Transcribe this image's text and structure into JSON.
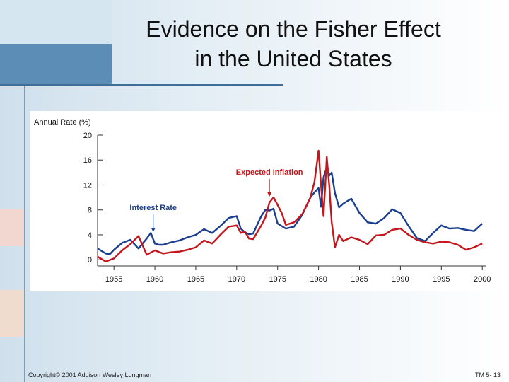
{
  "slide": {
    "title_line1": "Evidence on the Fisher Effect",
    "title_line2": "in the United States",
    "copyright": "Copyright© 2001 Addison Wesley Longman",
    "page_label": "TM 5- 13"
  },
  "chart_data": {
    "type": "line",
    "title": "",
    "xlabel": "",
    "ylabel": "Annual Rate (%)",
    "xlim": [
      1953,
      2000.5
    ],
    "ylim": [
      -1,
      20
    ],
    "xticks": [
      1955,
      1960,
      1965,
      1970,
      1975,
      1980,
      1985,
      1990,
      1995,
      2000
    ],
    "yticks": [
      0,
      4,
      8,
      12,
      16,
      20
    ],
    "grid": false,
    "colors": {
      "interest": "#1b3f8f",
      "inflation": "#c4161c"
    },
    "annotations": [
      {
        "text": "Interest Rate",
        "series": "Interest Rate",
        "x": 1959.8,
        "y": 4.1
      },
      {
        "text": "Expected Inflation",
        "series": "Expected Inflation",
        "x": 1974.0,
        "y": 9.8
      }
    ],
    "series": [
      {
        "name": "Interest Rate",
        "color": "#1b3f8f",
        "x": [
          1953,
          1954,
          1954.5,
          1955,
          1956,
          1957,
          1958,
          1958.5,
          1959,
          1959.5,
          1960,
          1960.5,
          1961,
          1962,
          1963,
          1964,
          1965,
          1966,
          1967,
          1968,
          1969,
          1970,
          1970.5,
          1971,
          1971.5,
          1972,
          1973,
          1973.5,
          1974,
          1974.5,
          1975,
          1975.5,
          1976,
          1977,
          1978,
          1979,
          1979.5,
          1980,
          1980.3,
          1980.6,
          1981,
          1981.3,
          1981.6,
          1982,
          1982.5,
          1983,
          1984,
          1985,
          1986,
          1987,
          1988,
          1989,
          1990,
          1991,
          1992,
          1993,
          1994,
          1995,
          1996,
          1997,
          1998,
          1999,
          2000
        ],
        "values": [
          1.8,
          1.0,
          0.9,
          1.6,
          2.7,
          3.2,
          1.8,
          2.6,
          3.4,
          4.3,
          2.6,
          2.4,
          2.4,
          2.8,
          3.1,
          3.6,
          4.0,
          4.9,
          4.3,
          5.4,
          6.7,
          7.0,
          5.0,
          4.4,
          4.1,
          4.2,
          7.0,
          8.0,
          7.9,
          8.2,
          5.8,
          5.4,
          5.0,
          5.3,
          7.2,
          10.0,
          10.8,
          11.5,
          8.5,
          13.2,
          14.8,
          13.5,
          14.0,
          10.7,
          8.4,
          9.0,
          9.8,
          7.5,
          6.0,
          5.8,
          6.7,
          8.1,
          7.5,
          5.4,
          3.5,
          3.0,
          4.3,
          5.5,
          5.0,
          5.1,
          4.8,
          4.6,
          5.8
        ]
      },
      {
        "name": "Expected Inflation",
        "color": "#c4161c",
        "x": [
          1953,
          1954,
          1955,
          1956,
          1957,
          1958,
          1959,
          1960,
          1961,
          1962,
          1963,
          1964,
          1965,
          1966,
          1967,
          1968,
          1969,
          1970,
          1970.5,
          1971,
          1971.5,
          1972,
          1973,
          1973.5,
          1974,
          1974.5,
          1975,
          1975.5,
          1976,
          1977,
          1978,
          1979,
          1979.5,
          1980,
          1980.3,
          1980.6,
          1980.9,
          1981,
          1981.3,
          1981.6,
          1982,
          1982.5,
          1983,
          1984,
          1985,
          1986,
          1987,
          1988,
          1989,
          1990,
          1991,
          1992,
          1993,
          1994,
          1995,
          1996,
          1997,
          1998,
          1999,
          2000
        ],
        "values": [
          0.5,
          -0.3,
          0.2,
          1.5,
          2.5,
          3.8,
          0.8,
          1.5,
          1.0,
          1.2,
          1.3,
          1.6,
          2.0,
          3.1,
          2.6,
          4.0,
          5.3,
          5.5,
          4.3,
          4.5,
          3.4,
          3.3,
          5.5,
          6.8,
          9.2,
          10.0,
          8.8,
          7.5,
          5.6,
          6.0,
          7.3,
          10.0,
          12.5,
          17.5,
          12.0,
          7.0,
          14.0,
          16.5,
          12.0,
          6.0,
          2.0,
          4.0,
          3.0,
          3.6,
          3.2,
          2.5,
          3.9,
          4.0,
          4.8,
          5.0,
          4.0,
          3.2,
          2.8,
          2.6,
          2.9,
          2.8,
          2.4,
          1.6,
          2.0,
          2.6
        ]
      }
    ]
  }
}
